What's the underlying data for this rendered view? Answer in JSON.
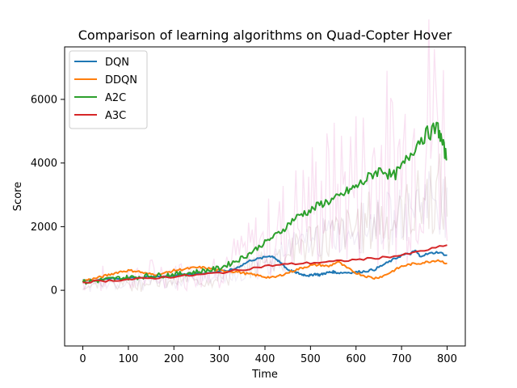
{
  "chart_data": {
    "type": "line",
    "title": "Comparison of learning algorithms on Quad-Copter Hover",
    "xlabel": "Time",
    "ylabel": "Score",
    "xlim": [
      -40,
      840
    ],
    "ylim": [
      -1750,
      7650
    ],
    "xticks": [
      0,
      100,
      200,
      300,
      400,
      500,
      600,
      700,
      800
    ],
    "yticks": [
      0,
      2000,
      4000,
      6000
    ],
    "grid": false,
    "legend_position": "top-left",
    "series": [
      {
        "name": "DQN",
        "color": "#1f77b4",
        "x": [
          0,
          50,
          100,
          150,
          200,
          250,
          300,
          330,
          350,
          370,
          390,
          410,
          420,
          430,
          440,
          450,
          460,
          470,
          480,
          490,
          500,
          510,
          520,
          530,
          540,
          550,
          560,
          580,
          600,
          620,
          640,
          660,
          680,
          700,
          720,
          730,
          740,
          760,
          780,
          800
        ],
        "y": [
          300,
          350,
          400,
          420,
          480,
          520,
          580,
          650,
          800,
          950,
          1000,
          1080,
          1050,
          900,
          800,
          650,
          600,
          550,
          500,
          480,
          460,
          520,
          480,
          530,
          560,
          580,
          550,
          560,
          570,
          600,
          650,
          800,
          950,
          1100,
          1150,
          1250,
          1080,
          1150,
          1200,
          1100
        ]
      },
      {
        "name": "DDQN",
        "color": "#ff7f0e",
        "x": [
          0,
          20,
          40,
          60,
          80,
          100,
          120,
          140,
          160,
          180,
          200,
          220,
          240,
          260,
          280,
          300,
          320,
          340,
          360,
          380,
          400,
          420,
          440,
          460,
          480,
          500,
          520,
          540,
          560,
          580,
          600,
          620,
          640,
          660,
          680,
          700,
          720,
          740,
          760,
          780,
          800
        ],
        "y": [
          300,
          350,
          420,
          500,
          580,
          620,
          600,
          520,
          500,
          540,
          620,
          660,
          700,
          720,
          680,
          620,
          600,
          580,
          520,
          480,
          420,
          400,
          500,
          600,
          700,
          780,
          800,
          750,
          900,
          700,
          550,
          450,
          380,
          450,
          600,
          750,
          820,
          850,
          900,
          950,
          850
        ]
      },
      {
        "name": "A2C",
        "color": "#2ca02c",
        "x": [
          0,
          20,
          40,
          60,
          80,
          100,
          120,
          140,
          160,
          180,
          200,
          220,
          240,
          260,
          280,
          300,
          320,
          340,
          360,
          380,
          400,
          420,
          440,
          460,
          480,
          500,
          520,
          540,
          560,
          580,
          600,
          620,
          640,
          660,
          680,
          700,
          720,
          740,
          760,
          780,
          790,
          800
        ],
        "y": [
          250,
          280,
          320,
          350,
          380,
          400,
          420,
          450,
          460,
          480,
          500,
          520,
          560,
          600,
          640,
          700,
          820,
          950,
          1100,
          1300,
          1500,
          1700,
          1900,
          2200,
          2400,
          2500,
          2700,
          2800,
          2900,
          3100,
          3250,
          3450,
          3700,
          3800,
          3550,
          3850,
          4300,
          4750,
          4950,
          5100,
          4600,
          4100
        ]
      },
      {
        "name": "A3C",
        "color": "#d62728",
        "x": [
          0,
          50,
          100,
          150,
          200,
          250,
          300,
          350,
          400,
          450,
          500,
          550,
          600,
          650,
          700,
          750,
          800
        ],
        "y": [
          260,
          300,
          340,
          380,
          430,
          480,
          550,
          650,
          760,
          820,
          860,
          900,
          960,
          1020,
          1100,
          1250,
          1420
        ]
      }
    ]
  }
}
